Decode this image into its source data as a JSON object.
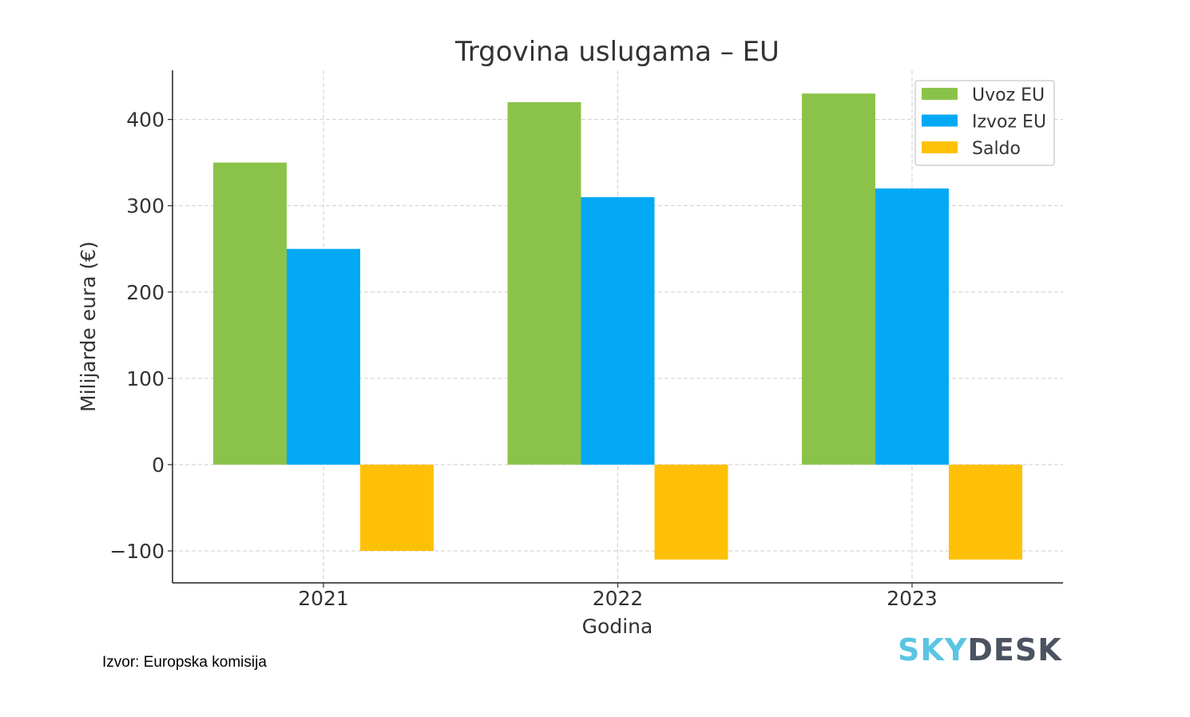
{
  "chart_data": {
    "type": "bar",
    "title": "Trgovina uslugama – EU",
    "xlabel": "Godina",
    "ylabel": "Milijarde eura (€)",
    "categories": [
      "2021",
      "2022",
      "2023"
    ],
    "series": [
      {
        "name": "Uvoz EU",
        "color": "#8bc34a",
        "values": [
          350,
          420,
          430
        ]
      },
      {
        "name": "Izvoz EU",
        "color": "#03a9f4",
        "values": [
          250,
          310,
          320
        ]
      },
      {
        "name": "Saldo",
        "color": "#ffc107",
        "values": [
          -100,
          -110,
          -110
        ]
      }
    ],
    "ylim": [
      -137,
      457
    ],
    "yticks": [
      -100,
      0,
      100,
      200,
      300,
      400
    ],
    "ytick_labels": [
      "−100",
      "0",
      "100",
      "200",
      "300",
      "400"
    ],
    "grid": true,
    "legend": "top-right"
  },
  "footer": {
    "source": "Izvor: Europska komisija",
    "logo_a": "SKY",
    "logo_b": "DESK"
  }
}
